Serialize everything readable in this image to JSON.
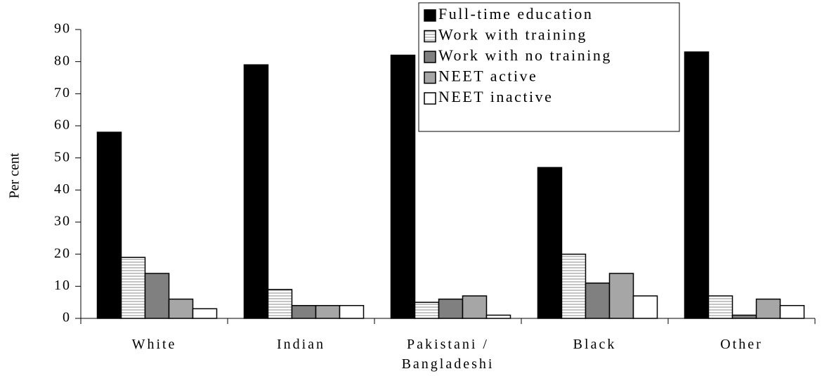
{
  "chart_data": {
    "type": "bar",
    "y_label": "Per cent",
    "categories": [
      "White",
      "Indian",
      "Pakistani / Bangladeshi",
      "Black",
      "Other"
    ],
    "series": [
      {
        "name": "Full-time education",
        "color": "#000000",
        "values": [
          58,
          79,
          82,
          47,
          83
        ]
      },
      {
        "name": "Work with training",
        "color": "#ffffff",
        "pattern": "horizontal-lines",
        "values": [
          19,
          9,
          5,
          20,
          7
        ]
      },
      {
        "name": "Work with no training",
        "color": "#808080",
        "values": [
          14,
          4,
          6,
          11,
          1
        ]
      },
      {
        "name": "NEET active",
        "color": "#a6a6a6",
        "values": [
          6,
          4,
          7,
          14,
          6
        ]
      },
      {
        "name": "NEET inactive",
        "color": "#ffffff",
        "values": [
          3,
          4,
          1,
          7,
          4
        ]
      }
    ],
    "ylim": [
      0,
      90
    ],
    "yticks": [
      0,
      10,
      20,
      30,
      40,
      50,
      60,
      70,
      80,
      90
    ],
    "legend": "top-right",
    "grid": false
  }
}
